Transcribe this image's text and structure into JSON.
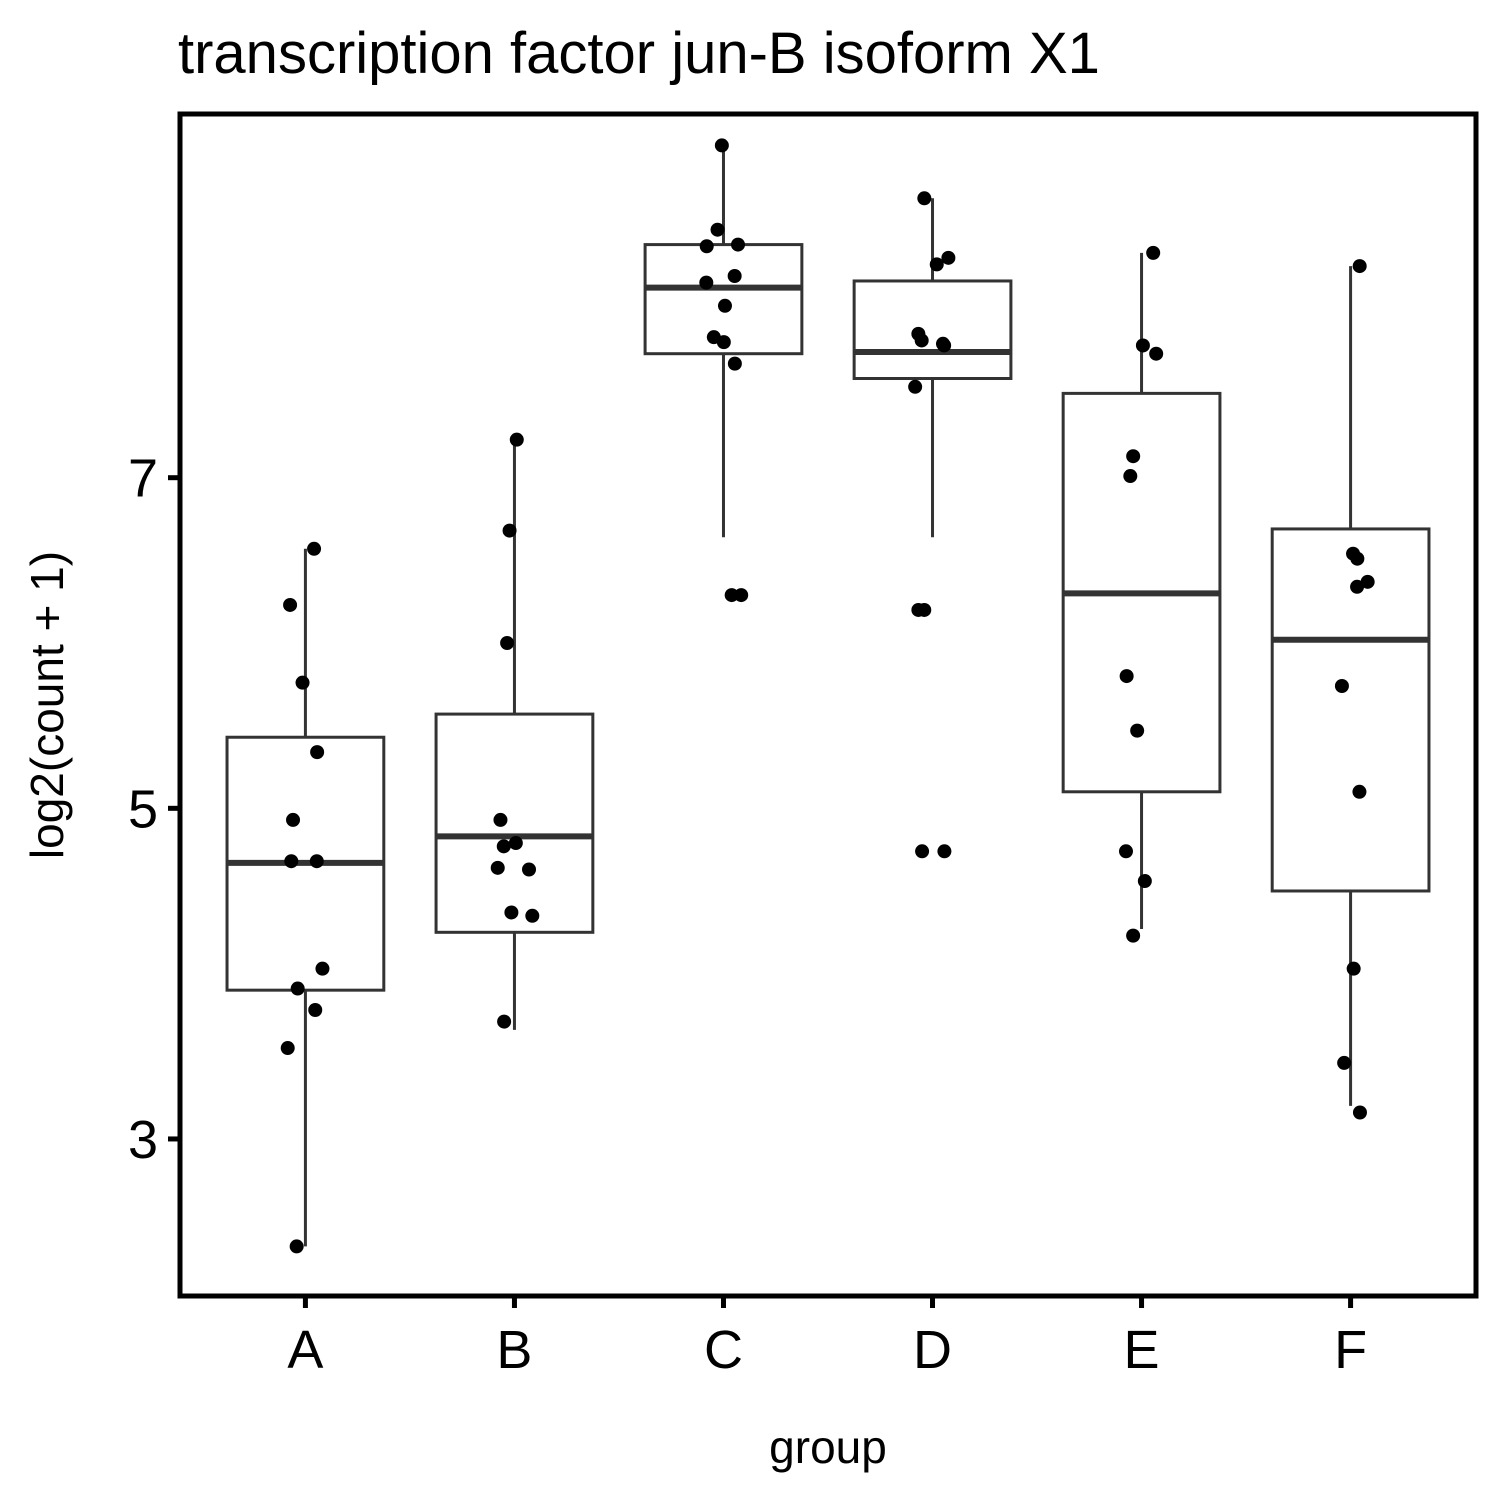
{
  "chart_data": {
    "type": "boxplot",
    "title": "transcription factor jun-B isoform X1",
    "xlabel": "group",
    "ylabel": "log2(count + 1)",
    "ylim": [
      2.05,
      9.2
    ],
    "yticks": [
      3,
      5,
      7
    ],
    "grid": false,
    "legend": "none",
    "categories": [
      "A",
      "B",
      "C",
      "D",
      "E",
      "F"
    ],
    "boxes": [
      {
        "group": "A",
        "whisker_low": 2.35,
        "q1": 3.9,
        "median": 4.67,
        "q3": 5.43,
        "whisker_high": 6.57
      },
      {
        "group": "B",
        "whisker_low": 3.66,
        "q1": 4.25,
        "median": 4.83,
        "q3": 5.57,
        "whisker_high": 7.23
      },
      {
        "group": "C",
        "whisker_low": 6.64,
        "q1": 7.75,
        "median": 8.15,
        "q3": 8.41,
        "whisker_high": 9.01
      },
      {
        "group": "D",
        "whisker_low": 6.64,
        "q1": 7.6,
        "median": 7.76,
        "q3": 8.19,
        "whisker_high": 8.69
      },
      {
        "group": "E",
        "whisker_low": 4.27,
        "q1": 5.1,
        "median": 6.3,
        "q3": 7.51,
        "whisker_high": 8.36
      },
      {
        "group": "F",
        "whisker_low": 3.2,
        "q1": 4.5,
        "median": 6.02,
        "q3": 6.69,
        "whisker_high": 8.28
      }
    ],
    "points": [
      {
        "group": "A",
        "values": [
          6.57,
          6.23,
          5.76,
          5.34,
          4.93,
          4.68,
          4.68,
          4.03,
          3.91,
          3.78,
          3.55,
          2.35
        ]
      },
      {
        "group": "B",
        "values": [
          7.23,
          6.68,
          6.0,
          4.79,
          4.93,
          4.64,
          4.63,
          4.77,
          4.37,
          4.35,
          3.71
        ]
      },
      {
        "group": "C",
        "values": [
          9.01,
          8.5,
          8.41,
          8.4,
          8.22,
          8.18,
          8.04,
          7.85,
          7.82,
          7.69,
          6.29,
          6.29
        ]
      },
      {
        "group": "D",
        "values": [
          8.69,
          8.33,
          8.29,
          7.87,
          7.83,
          7.8,
          7.81,
          7.55,
          6.2,
          6.2,
          4.74,
          4.74
        ]
      },
      {
        "group": "E",
        "values": [
          8.36,
          7.8,
          7.75,
          7.13,
          7.01,
          5.8,
          5.47,
          4.74,
          4.56,
          4.23
        ]
      },
      {
        "group": "F",
        "values": [
          8.28,
          6.54,
          6.51,
          6.37,
          6.34,
          5.74,
          5.1,
          4.03,
          3.46,
          3.16
        ]
      }
    ]
  }
}
